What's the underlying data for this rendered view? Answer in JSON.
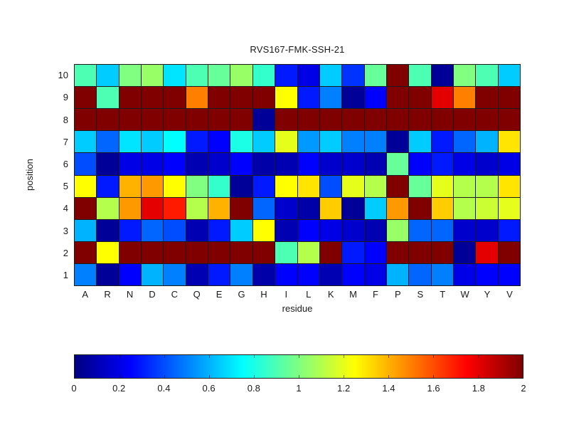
{
  "chart_data": {
    "type": "heatmap",
    "title": "RVS167-FMK-SSH-21",
    "xlabel": "residue",
    "ylabel": "position",
    "colormap": "jet",
    "grid": true,
    "value_range": [
      0,
      2
    ],
    "x_categories": [
      "A",
      "R",
      "N",
      "D",
      "C",
      "Q",
      "E",
      "G",
      "H",
      "I",
      "L",
      "K",
      "M",
      "F",
      "P",
      "S",
      "T",
      "W",
      "Y",
      "V"
    ],
    "y_categories_top_to_bottom": [
      "10",
      "9",
      "8",
      "7",
      "6",
      "5",
      "4",
      "3",
      "2",
      "1"
    ],
    "rows_top_to_bottom": [
      {
        "position": "10",
        "values": [
          0.9,
          0.65,
          1.0,
          1.05,
          0.7,
          0.9,
          0.95,
          1.05,
          0.85,
          0.3,
          0.2,
          0.65,
          0.35,
          0.95,
          2,
          0.9,
          0.05,
          1.0,
          0.9,
          0.65
        ]
      },
      {
        "position": "9",
        "values": [
          2,
          0.9,
          2,
          2,
          2,
          1.5,
          2,
          2,
          2,
          1.25,
          0.3,
          0.5,
          0.05,
          0.25,
          2,
          2,
          1.8,
          1.5,
          2,
          2
        ]
      },
      {
        "position": "8",
        "values": [
          2,
          2,
          2,
          2,
          2,
          2,
          2,
          2,
          0.05,
          2,
          2,
          2,
          2,
          2,
          2,
          2,
          2,
          2,
          2,
          2
        ]
      },
      {
        "position": "7",
        "values": [
          0.65,
          0.45,
          0.7,
          0.65,
          0.75,
          0.3,
          0.25,
          0.8,
          0.65,
          1.2,
          0.55,
          0.65,
          0.5,
          0.5,
          0.05,
          0.65,
          0.3,
          0.45,
          0.6,
          1.3
        ]
      },
      {
        "position": "6",
        "values": [
          0.4,
          0.05,
          0.2,
          0.2,
          0.25,
          0.1,
          0.15,
          0.25,
          0.08,
          0.1,
          0.25,
          0.15,
          0.15,
          0.1,
          0.95,
          0.25,
          0.3,
          0.2,
          0.15,
          0.2
        ]
      },
      {
        "position": "5",
        "values": [
          1.25,
          0.3,
          1.4,
          1.45,
          1.25,
          1.0,
          0.85,
          0.05,
          0.3,
          1.25,
          1.3,
          0.4,
          1.2,
          1.1,
          2,
          0.95,
          1.2,
          1.1,
          1.1,
          1.3
        ]
      },
      {
        "position": "4",
        "values": [
          2,
          1.1,
          1.45,
          1.8,
          1.7,
          1.1,
          1.4,
          2,
          0.45,
          0.15,
          0.08,
          1.35,
          0.05,
          0.65,
          1.45,
          2,
          1.35,
          1.1,
          1.15,
          1.2
        ]
      },
      {
        "position": "3",
        "values": [
          0.6,
          0.05,
          0.3,
          0.45,
          0.4,
          0.1,
          0.3,
          0.65,
          1.25,
          0.1,
          0.25,
          0.2,
          0.15,
          0.1,
          1.05,
          0.45,
          0.45,
          0.15,
          0.15,
          0.3
        ]
      },
      {
        "position": "2",
        "values": [
          2,
          1.25,
          2,
          2,
          2,
          2,
          2,
          2,
          2,
          0.9,
          1.1,
          2,
          0.3,
          0.25,
          2,
          2,
          2,
          0.05,
          1.8,
          2
        ]
      },
      {
        "position": "1",
        "values": [
          0.5,
          0.05,
          0.25,
          0.6,
          0.5,
          0.1,
          0.3,
          0.5,
          0.08,
          0.25,
          0.25,
          0.1,
          0.25,
          0.2,
          0.6,
          0.45,
          0.5,
          0.2,
          0.25,
          0.25
        ]
      }
    ],
    "colorbar": {
      "orientation": "horizontal",
      "min": 0,
      "max": 2,
      "tick_labels": [
        "0",
        "0.2",
        "0.4",
        "0.6",
        "0.8",
        "1",
        "1.2",
        "1.4",
        "1.6",
        "1.8",
        "2"
      ]
    }
  }
}
